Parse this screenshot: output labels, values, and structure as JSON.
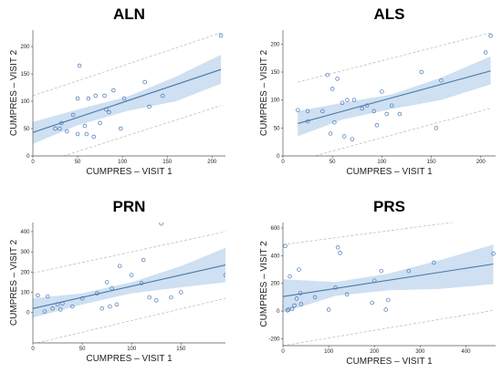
{
  "chart_data": [
    {
      "type": "scatter",
      "title": "ALN",
      "xlabel": "CUMPRES – VISIT 1",
      "ylabel": "CUMPRES – VISIT 2",
      "xlim": [
        0,
        215
      ],
      "ylim": [
        0,
        230
      ],
      "xticks": [
        0,
        50,
        100,
        150,
        200
      ],
      "yticks": [
        0,
        50,
        100,
        150,
        200
      ],
      "grid": false,
      "fit_line": {
        "x": [
          0,
          210
        ],
        "y": [
          43,
          158
        ]
      },
      "confidence_band": {
        "x": [
          0,
          50,
          105,
          160,
          210
        ],
        "upper": [
          62,
          85,
          108,
          145,
          185
        ],
        "lower": [
          22,
          56,
          82,
          100,
          132
        ]
      },
      "prediction_interval": {
        "x": [
          0,
          210
        ],
        "upper": [
          110,
          225
        ],
        "lower": [
          -18,
          92
        ]
      },
      "points": [
        {
          "x": 25,
          "y": 50
        },
        {
          "x": 30,
          "y": 50
        },
        {
          "x": 32,
          "y": 60
        },
        {
          "x": 38,
          "y": 45
        },
        {
          "x": 45,
          "y": 75
        },
        {
          "x": 50,
          "y": 105
        },
        {
          "x": 50,
          "y": 40
        },
        {
          "x": 52,
          "y": 165
        },
        {
          "x": 58,
          "y": 55
        },
        {
          "x": 60,
          "y": 40
        },
        {
          "x": 62,
          "y": 105
        },
        {
          "x": 68,
          "y": 35
        },
        {
          "x": 70,
          "y": 110
        },
        {
          "x": 75,
          "y": 60
        },
        {
          "x": 80,
          "y": 110
        },
        {
          "x": 82,
          "y": 85
        },
        {
          "x": 85,
          "y": 80
        },
        {
          "x": 90,
          "y": 120
        },
        {
          "x": 98,
          "y": 50
        },
        {
          "x": 102,
          "y": 105
        },
        {
          "x": 125,
          "y": 135
        },
        {
          "x": 130,
          "y": 90
        },
        {
          "x": 145,
          "y": 110
        },
        {
          "x": 210,
          "y": 220
        }
      ]
    },
    {
      "type": "scatter",
      "title": "ALS",
      "xlabel": "CUMPRES – VISIT 1",
      "ylabel": "CUMPRES – VISIT 2",
      "xlim": [
        0,
        215
      ],
      "ylim": [
        0,
        225
      ],
      "xticks": [
        0,
        50,
        100,
        150,
        200
      ],
      "yticks": [
        0,
        50,
        100,
        150,
        200
      ],
      "grid": false,
      "fit_line": {
        "x": [
          15,
          210
        ],
        "y": [
          58,
          152
        ]
      },
      "confidence_band": {
        "x": [
          15,
          60,
          110,
          160,
          210
        ],
        "upper": [
          80,
          95,
          110,
          140,
          178
        ],
        "lower": [
          35,
          65,
          84,
          100,
          128
        ]
      },
      "prediction_interval": {
        "x": [
          15,
          210
        ],
        "upper": [
          132,
          220
        ],
        "lower": [
          -8,
          85
        ]
      },
      "points": [
        {
          "x": 15,
          "y": 82
        },
        {
          "x": 25,
          "y": 80
        },
        {
          "x": 25,
          "y": 62
        },
        {
          "x": 40,
          "y": 80
        },
        {
          "x": 45,
          "y": 145
        },
        {
          "x": 48,
          "y": 40
        },
        {
          "x": 50,
          "y": 120
        },
        {
          "x": 52,
          "y": 60
        },
        {
          "x": 55,
          "y": 138
        },
        {
          "x": 60,
          "y": 95
        },
        {
          "x": 62,
          "y": 35
        },
        {
          "x": 65,
          "y": 100
        },
        {
          "x": 70,
          "y": 30
        },
        {
          "x": 72,
          "y": 100
        },
        {
          "x": 80,
          "y": 85
        },
        {
          "x": 85,
          "y": 90
        },
        {
          "x": 92,
          "y": 80
        },
        {
          "x": 95,
          "y": 55
        },
        {
          "x": 100,
          "y": 115
        },
        {
          "x": 105,
          "y": 75
        },
        {
          "x": 110,
          "y": 90
        },
        {
          "x": 118,
          "y": 75
        },
        {
          "x": 140,
          "y": 150
        },
        {
          "x": 155,
          "y": 50
        },
        {
          "x": 160,
          "y": 135
        },
        {
          "x": 205,
          "y": 185
        },
        {
          "x": 210,
          "y": 215
        }
      ]
    },
    {
      "type": "scatter",
      "title": "PRN",
      "xlabel": "CUMPRES – VISIT 1",
      "ylabel": "CUMPRES – VISIT 2",
      "xlim": [
        0,
        195
      ],
      "ylim": [
        -150,
        445
      ],
      "xticks": [
        0,
        50,
        100,
        150
      ],
      "yticks": [
        0,
        100,
        200,
        300,
        400
      ],
      "grid": false,
      "fit_line": {
        "x": [
          0,
          195
        ],
        "y": [
          20,
          235
        ]
      },
      "confidence_band": {
        "x": [
          0,
          50,
          100,
          150,
          195
        ],
        "upper": [
          70,
          95,
          150,
          230,
          320
        ],
        "lower": [
          -25,
          40,
          95,
          125,
          150
        ]
      },
      "prediction_interval": {
        "x": [
          0,
          195
        ],
        "upper": [
          195,
          400
        ],
        "lower": [
          -155,
          70
        ]
      },
      "points": [
        {
          "x": 5,
          "y": 85
        },
        {
          "x": 12,
          "y": 5
        },
        {
          "x": 15,
          "y": 80
        },
        {
          "x": 20,
          "y": 20
        },
        {
          "x": 25,
          "y": 40
        },
        {
          "x": 28,
          "y": 15
        },
        {
          "x": 30,
          "y": 45
        },
        {
          "x": 40,
          "y": 30
        },
        {
          "x": 50,
          "y": 70
        },
        {
          "x": 65,
          "y": 95
        },
        {
          "x": 70,
          "y": 20
        },
        {
          "x": 75,
          "y": 150
        },
        {
          "x": 78,
          "y": 30
        },
        {
          "x": 80,
          "y": 120
        },
        {
          "x": 85,
          "y": 40
        },
        {
          "x": 88,
          "y": 230
        },
        {
          "x": 100,
          "y": 185
        },
        {
          "x": 110,
          "y": 145
        },
        {
          "x": 112,
          "y": 260
        },
        {
          "x": 118,
          "y": 75
        },
        {
          "x": 125,
          "y": 60
        },
        {
          "x": 130,
          "y": 440
        },
        {
          "x": 140,
          "y": 75
        },
        {
          "x": 150,
          "y": 100
        },
        {
          "x": 195,
          "y": 185
        }
      ]
    },
    {
      "type": "scatter",
      "title": "PRS",
      "xlabel": "CUMPRES – VISIT 1",
      "ylabel": "CUMPRES – VISIT 2",
      "xlim": [
        0,
        465
      ],
      "ylim": [
        -250,
        640
      ],
      "xticks": [
        0,
        100,
        200,
        300,
        400
      ],
      "yticks": [
        -200,
        0,
        200,
        400,
        600
      ],
      "grid": false,
      "fit_line": {
        "x": [
          0,
          460
        ],
        "y": [
          105,
          340
        ]
      },
      "confidence_band": {
        "x": [
          0,
          115,
          230,
          345,
          460
        ],
        "upper": [
          230,
          210,
          270,
          370,
          480
        ],
        "lower": [
          -10,
          110,
          150,
          160,
          195
        ]
      },
      "prediction_interval": {
        "x": [
          0,
          460
        ],
        "upper": [
          480,
          680
        ],
        "lower": [
          -250,
          5
        ]
      },
      "points": [
        {
          "x": 5,
          "y": 470
        },
        {
          "x": 10,
          "y": 5
        },
        {
          "x": 12,
          "y": 10
        },
        {
          "x": 15,
          "y": 250
        },
        {
          "x": 20,
          "y": 15
        },
        {
          "x": 25,
          "y": 40
        },
        {
          "x": 30,
          "y": 90
        },
        {
          "x": 35,
          "y": 300
        },
        {
          "x": 38,
          "y": 130
        },
        {
          "x": 40,
          "y": 50
        },
        {
          "x": 70,
          "y": 100
        },
        {
          "x": 100,
          "y": 10
        },
        {
          "x": 115,
          "y": 170
        },
        {
          "x": 120,
          "y": 460
        },
        {
          "x": 125,
          "y": 420
        },
        {
          "x": 140,
          "y": 120
        },
        {
          "x": 195,
          "y": 60
        },
        {
          "x": 200,
          "y": 220
        },
        {
          "x": 215,
          "y": 290
        },
        {
          "x": 225,
          "y": 10
        },
        {
          "x": 230,
          "y": 80
        },
        {
          "x": 275,
          "y": 290
        },
        {
          "x": 330,
          "y": 350
        },
        {
          "x": 460,
          "y": 415
        }
      ]
    }
  ]
}
